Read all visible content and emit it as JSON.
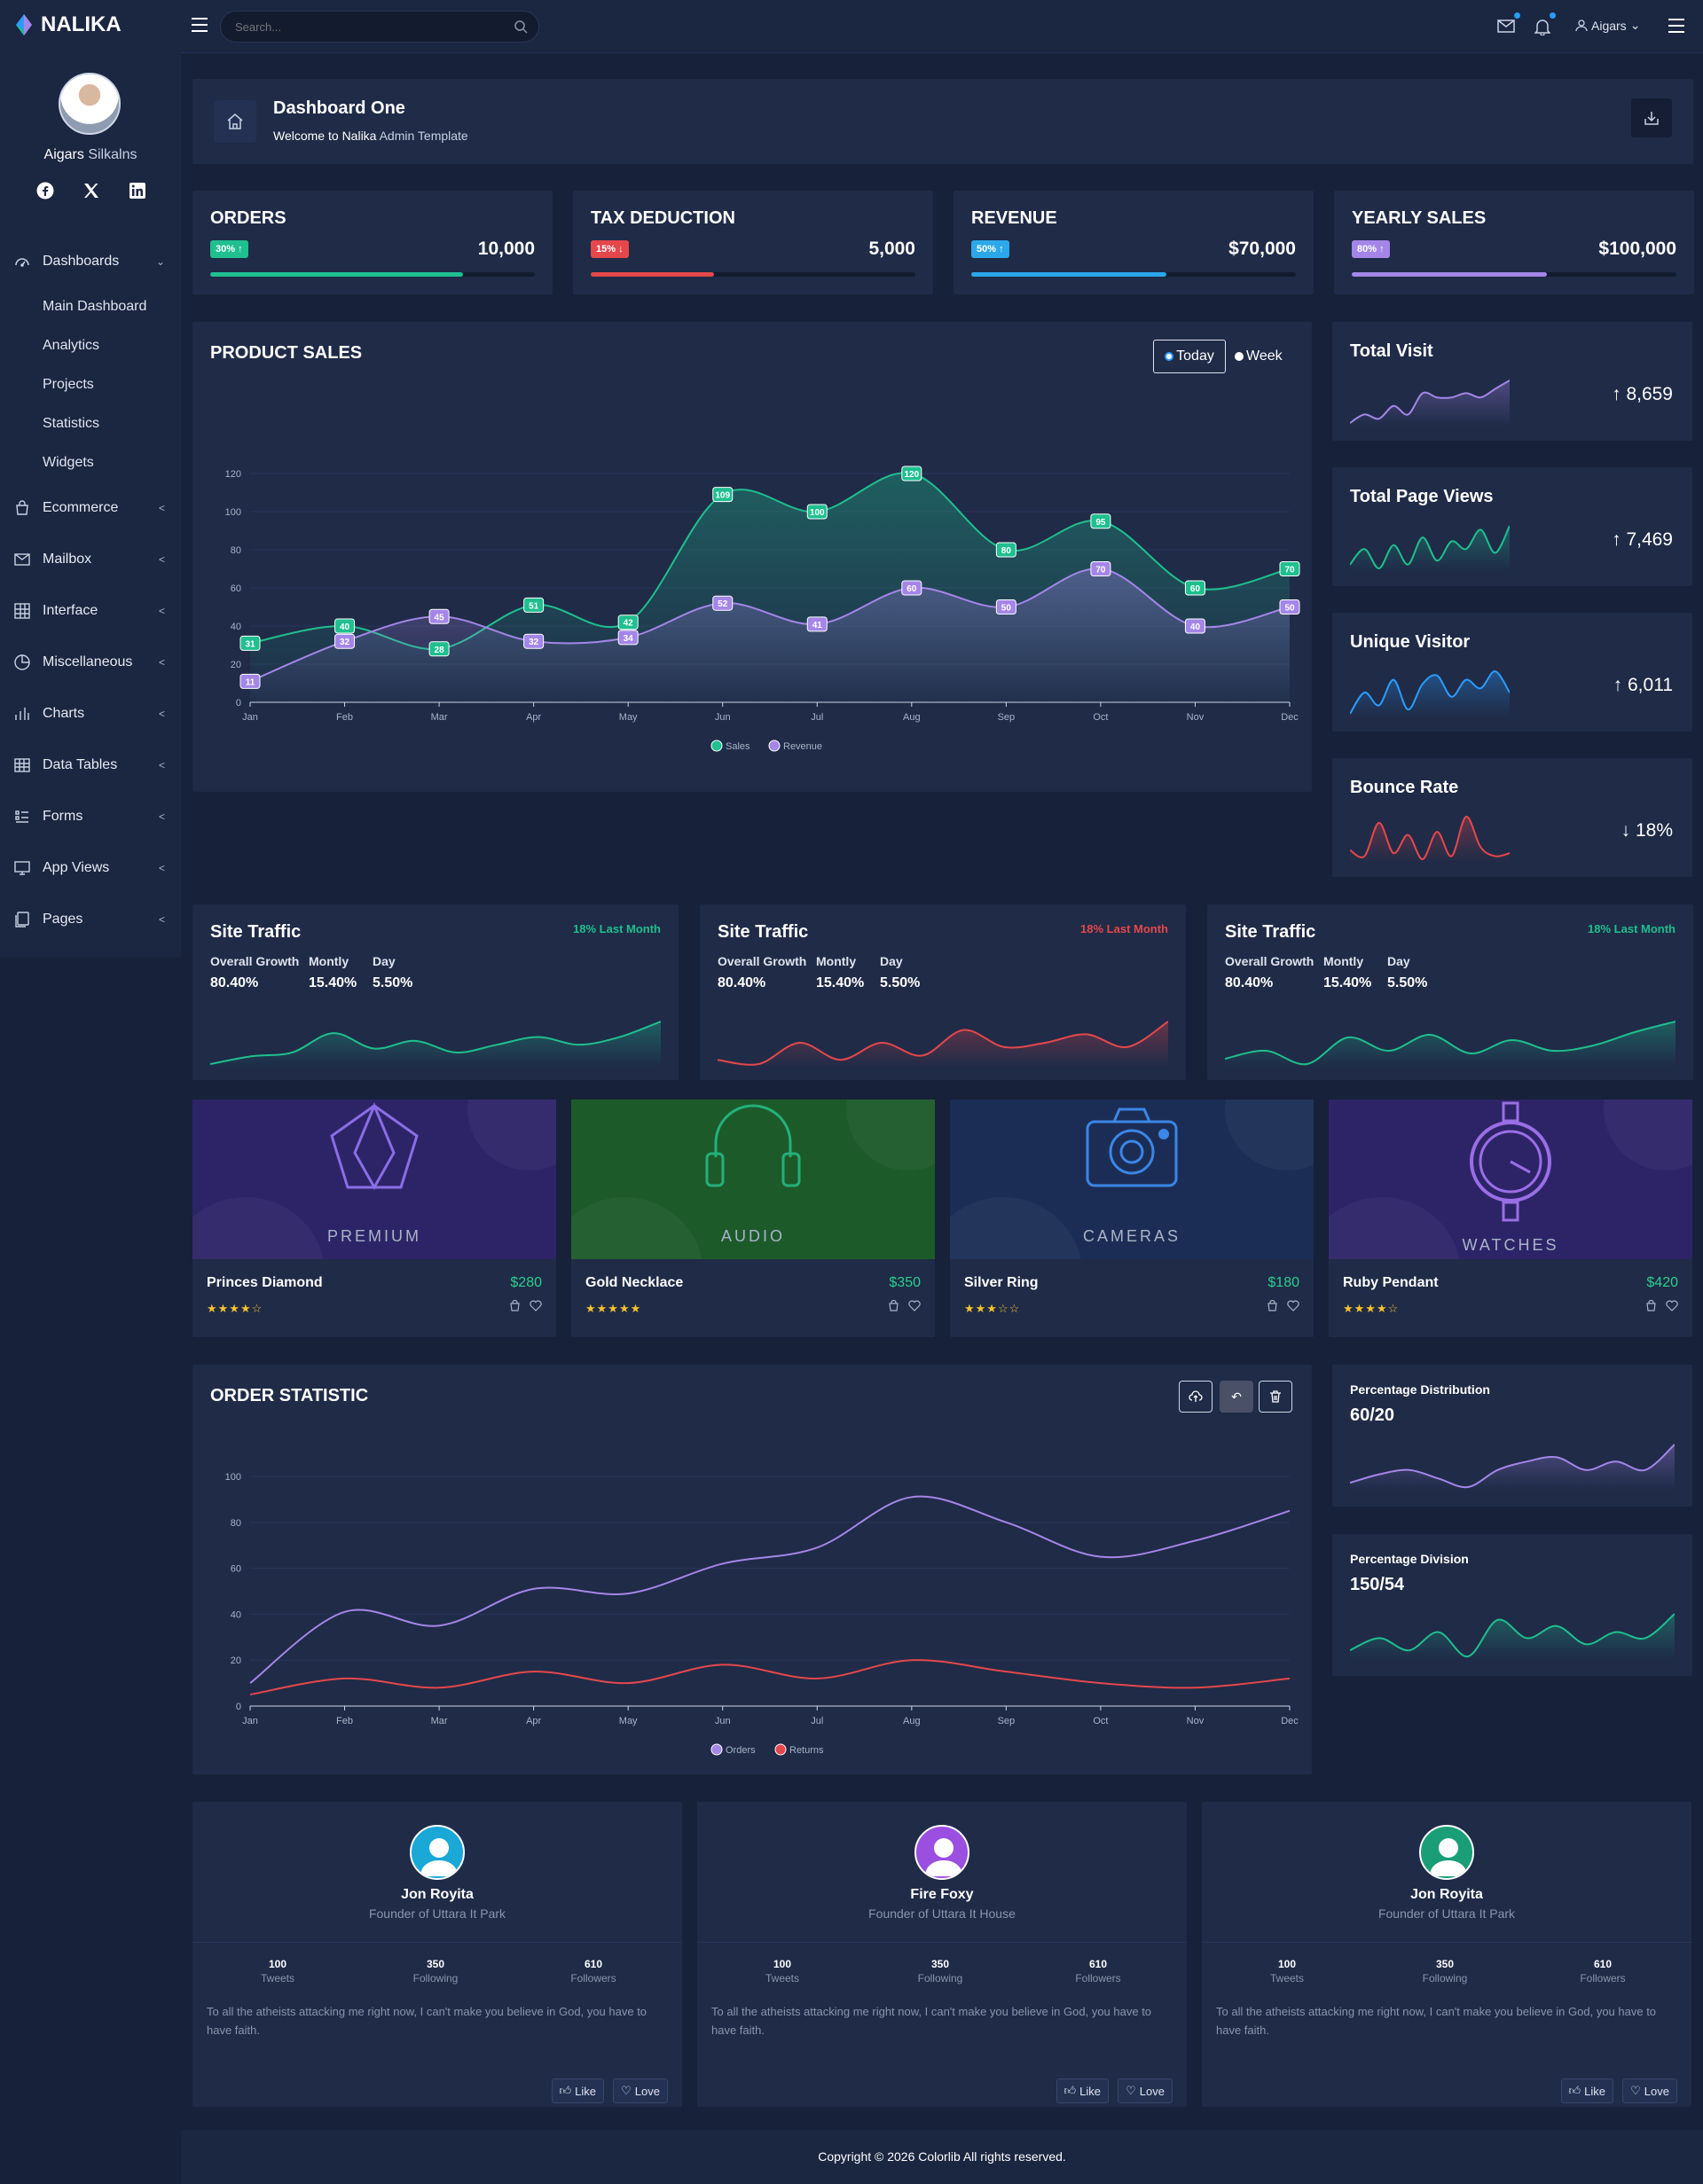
{
  "brand": {
    "name": "NALIKA"
  },
  "user": {
    "first": "Aigars",
    "last": "Silkalns",
    "top_name": "Aigars"
  },
  "search": {
    "placeholder": "Search..."
  },
  "sidebar": {
    "dashboards": "Dashboards",
    "subitems": [
      "Main Dashboard",
      "Analytics",
      "Projects",
      "Statistics",
      "Widgets"
    ],
    "items": [
      {
        "label": "Ecommerce",
        "icon": "bag-icon"
      },
      {
        "label": "Mailbox",
        "icon": "mail-icon"
      },
      {
        "label": "Interface",
        "icon": "grid-icon"
      },
      {
        "label": "Miscellaneous",
        "icon": "pie-icon"
      },
      {
        "label": "Charts",
        "icon": "bar-chart-icon"
      },
      {
        "label": "Data Tables",
        "icon": "table-icon"
      },
      {
        "label": "Forms",
        "icon": "form-icon"
      },
      {
        "label": "App Views",
        "icon": "monitor-icon"
      },
      {
        "label": "Pages",
        "icon": "pages-icon"
      }
    ]
  },
  "header": {
    "title": "Dashboard One",
    "welcome": "Welcome to",
    "brand": "Nalika",
    "rest": "Admin Template"
  },
  "stats": [
    {
      "title": "ORDERS",
      "badge": "30%",
      "arrow": "↑",
      "value": "10,000",
      "color": "#1fbf8f",
      "progress": 0.78
    },
    {
      "title": "TAX DEDUCTION",
      "badge": "15%",
      "arrow": "↓",
      "value": "5,000",
      "color": "#e5474b",
      "progress": 0.38
    },
    {
      "title": "REVENUE",
      "badge": "50%",
      "arrow": "↑",
      "value": "$70,000",
      "color": "#2ba8ea",
      "progress": 0.6
    },
    {
      "title": "YEARLY SALES",
      "badge": "80%",
      "arrow": "↑",
      "value": "$100,000",
      "color": "#a486e8",
      "progress": 0.6
    }
  ],
  "product_sales": {
    "title": "PRODUCT SALES",
    "toggle": [
      "Today",
      "Week"
    ]
  },
  "minis": [
    {
      "title": "Total Visit",
      "arrow": "↑",
      "value": "8,659",
      "color": "#a486e8"
    },
    {
      "title": "Total Page Views",
      "arrow": "↑",
      "value": "7,469",
      "color": "#1fbf8f"
    },
    {
      "title": "Unique Visitor",
      "arrow": "↑",
      "value": "6,011",
      "color": "#2b9cff"
    },
    {
      "title": "Bounce Rate",
      "arrow": "↓",
      "value": "18%",
      "color": "#e5474b"
    }
  ],
  "traffic": [
    {
      "title": "Site Traffic",
      "lm": "18% Last Month",
      "lm_color": "#1fbf8f",
      "line": "#1fbf8f"
    },
    {
      "title": "Site Traffic",
      "lm": "18% Last Month",
      "lm_color": "#e5474b",
      "line": "#e5474b"
    },
    {
      "title": "Site Traffic",
      "lm": "18% Last Month",
      "lm_color": "#1fbf8f",
      "line": "#1fbf8f"
    }
  ],
  "traffic_labels": {
    "g": "Overall Growth",
    "m": "Montly",
    "d": "Day",
    "gv": "80.40%",
    "mv": "15.40%",
    "dv": "5.50%"
  },
  "products": [
    {
      "name": "Princes Diamond",
      "price": "$280",
      "stars": "★★★★☆",
      "banner": "PREMIUM",
      "bg": "#2d2468",
      "icon": "diamond-icon"
    },
    {
      "name": "Gold Necklace",
      "price": "$350",
      "stars": "★★★★★",
      "banner": "AUDIO",
      "bg": "#1c5a2a",
      "icon": "headphones-icon"
    },
    {
      "name": "Silver Ring",
      "price": "$180",
      "stars": "★★★☆☆",
      "banner": "CAMERAS",
      "bg": "#1c2d55",
      "icon": "camera-icon"
    },
    {
      "name": "Ruby Pendant",
      "price": "$420",
      "stars": "★★★★☆",
      "banner": "WATCHES",
      "bg": "#2d2468",
      "icon": "watch-icon"
    }
  ],
  "order_statistic": {
    "title": "ORDER STATISTIC"
  },
  "pct": [
    {
      "title": "Percentage Distribution",
      "value": "60/20",
      "color": "#a486e8"
    },
    {
      "title": "Percentage Division",
      "value": "150/54",
      "color": "#1fbf8f"
    }
  ],
  "profiles": [
    {
      "name": "Jon Royita",
      "role": "Founder of Uttara It Park",
      "color": "#1aa8d6"
    },
    {
      "name": "Fire Foxy",
      "role": "Founder of Uttara It House",
      "color": "#9a4fe0"
    },
    {
      "name": "Jon Royita",
      "role": "Founder of Uttara It Park",
      "color": "#1a9e78"
    }
  ],
  "profile_stats": {
    "tweets": "100",
    "tweets_l": "Tweets",
    "following": "350",
    "following_l": "Following",
    "followers": "610",
    "followers_l": "Followers"
  },
  "profile_text": "To all the atheists attacking me right now, I can't make you believe in God, you have to have faith.",
  "profile_btns": {
    "like": "Like",
    "love": "Love"
  },
  "footer": {
    "text": "Copyright © 2026 Colorlib All rights reserved."
  },
  "chart_data": [
    {
      "type": "area",
      "title": "PRODUCT SALES",
      "categories": [
        "Jan",
        "Feb",
        "Mar",
        "Apr",
        "May",
        "Jun",
        "Jul",
        "Aug",
        "Sep",
        "Oct",
        "Nov",
        "Dec"
      ],
      "series": [
        {
          "name": "Sales",
          "values": [
            31,
            40,
            28,
            51,
            42,
            109,
            100,
            120,
            80,
            95,
            60,
            70
          ],
          "color": "#1fbf8f"
        },
        {
          "name": "Revenue",
          "values": [
            11,
            32,
            45,
            32,
            34,
            52,
            41,
            60,
            50,
            70,
            40,
            50
          ],
          "color": "#a486e8"
        }
      ],
      "yticks": [
        0,
        20,
        40,
        60,
        80,
        100,
        120
      ],
      "ylim": [
        0,
        120
      ],
      "legend": "bottom"
    },
    {
      "type": "line",
      "title": "ORDER STATISTIC",
      "categories": [
        "Jan",
        "Feb",
        "Mar",
        "Apr",
        "May",
        "Jun",
        "Jul",
        "Aug",
        "Sep",
        "Oct",
        "Nov",
        "Dec"
      ],
      "series": [
        {
          "name": "Orders",
          "values": [
            10,
            41,
            35,
            51,
            49,
            62,
            69,
            91,
            80,
            65,
            72,
            85
          ],
          "color": "#a486e8"
        },
        {
          "name": "Returns",
          "values": [
            5,
            12,
            8,
            15,
            10,
            18,
            12,
            20,
            15,
            10,
            8,
            12
          ],
          "color": "#e5474b"
        }
      ],
      "yticks": [
        0,
        20,
        40,
        60,
        80,
        100
      ],
      "ylim": [
        0,
        100
      ],
      "legend": "bottom"
    }
  ]
}
